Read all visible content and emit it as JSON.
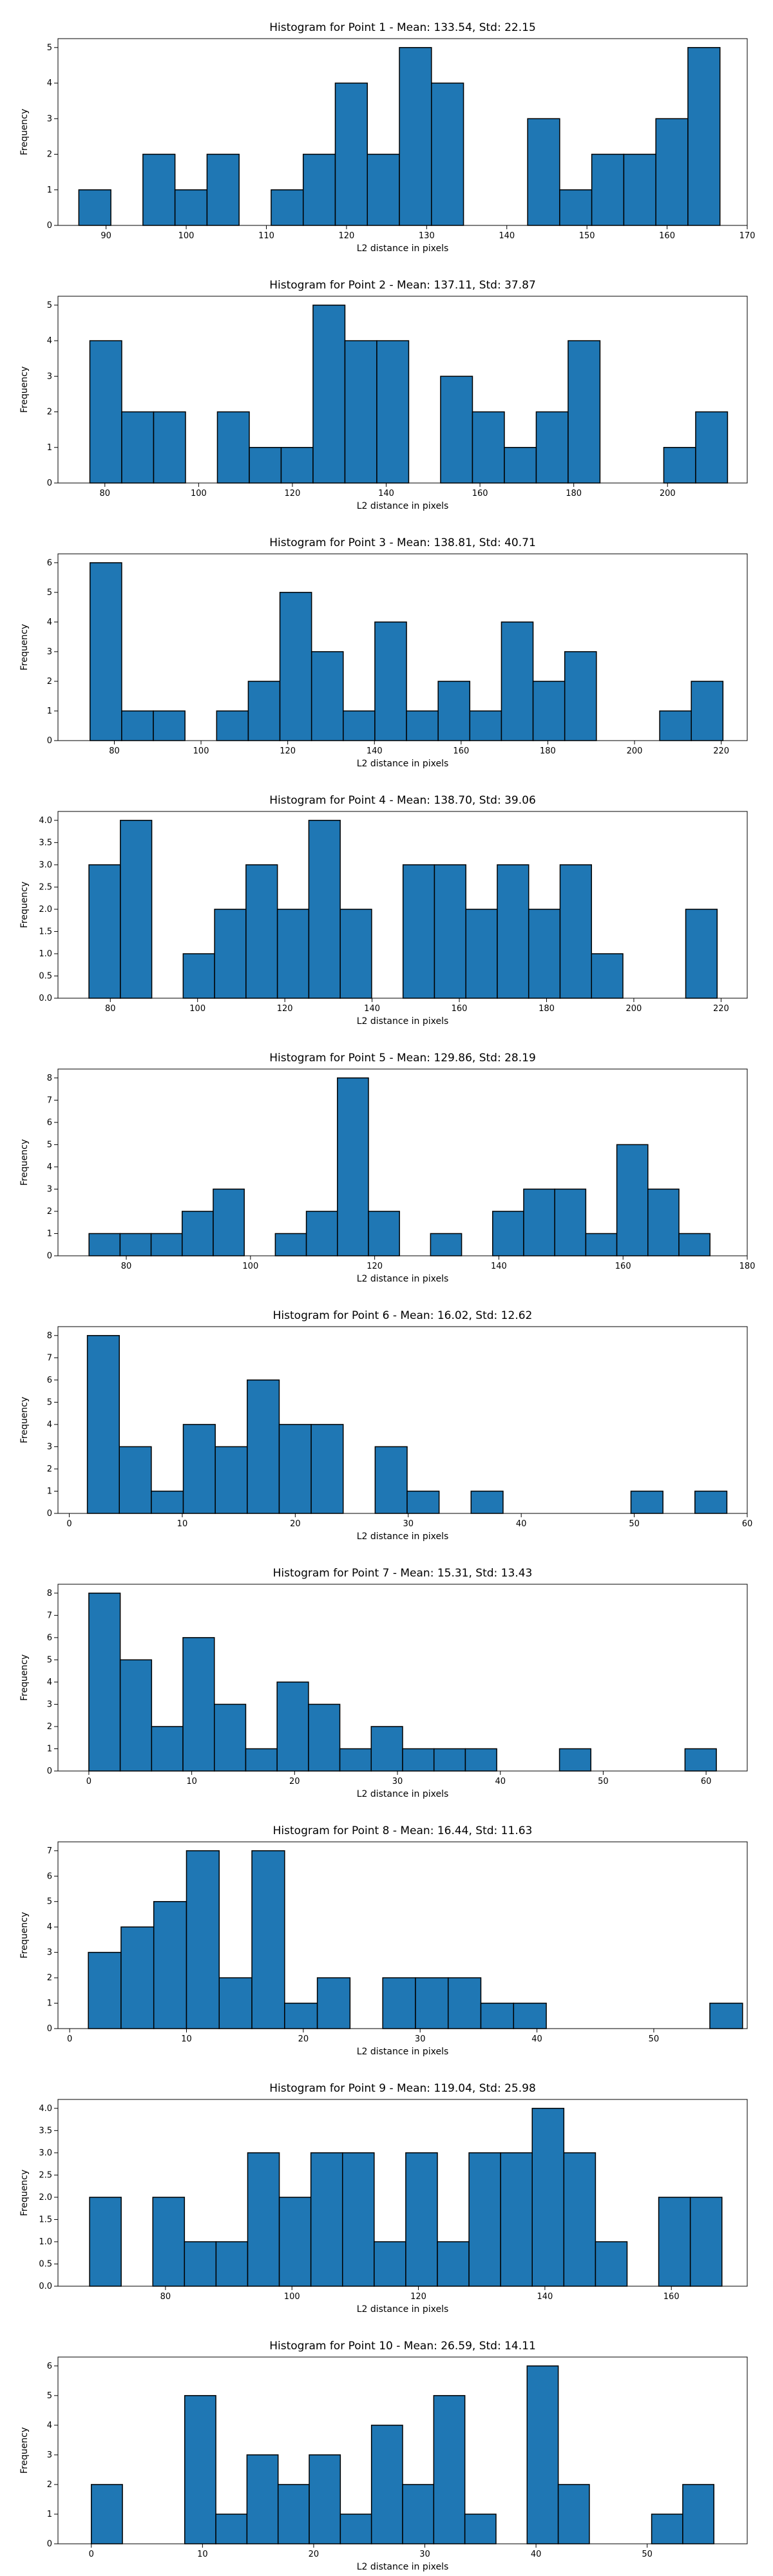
{
  "chart_data": [
    {
      "type": "bar",
      "title": "Histogram for Point 1 - Mean: 133.54, Std: 22.15",
      "xlabel": "L2 distance in pixels",
      "ylabel": "Frequency",
      "xlim": [
        84,
        170
      ],
      "ylim": [
        0,
        5.25
      ],
      "xticks": [
        90,
        100,
        110,
        120,
        130,
        140,
        150,
        160,
        170
      ],
      "yticks": [
        0,
        1,
        2,
        3,
        4,
        5
      ],
      "bins": [
        86.6,
        90.6,
        94.6,
        98.6,
        102.6,
        106.6,
        110.6,
        114.6,
        118.6,
        122.6,
        126.6,
        130.6,
        134.6,
        138.6,
        142.6,
        146.6,
        150.6,
        154.6,
        158.6,
        162.6,
        166.6
      ],
      "counts": [
        1,
        0,
        2,
        1,
        2,
        0,
        1,
        2,
        4,
        2,
        5,
        4,
        0,
        0,
        3,
        1,
        2,
        2,
        3,
        5
      ],
      "grid": false
    },
    {
      "type": "bar",
      "title": "Histogram for Point 2 - Mean: 137.11, Std: 37.87",
      "xlabel": "L2 distance in pixels",
      "ylabel": "Frequency",
      "xlim": [
        70,
        217
      ],
      "ylim": [
        0,
        5.25
      ],
      "xticks": [
        80,
        100,
        120,
        140,
        160,
        180,
        200
      ],
      "yticks": [
        0,
        1,
        2,
        3,
        4,
        5
      ],
      "bins": [
        76.8,
        83.6,
        90.4,
        97.2,
        104.0,
        110.8,
        117.6,
        124.4,
        131.2,
        138.0,
        144.8,
        151.6,
        158.4,
        165.2,
        172.0,
        178.8,
        185.6,
        192.4,
        199.2,
        206.0,
        212.8
      ],
      "counts": [
        4,
        2,
        2,
        0,
        2,
        1,
        1,
        5,
        4,
        4,
        0,
        3,
        2,
        1,
        2,
        4,
        0,
        0,
        1,
        2
      ],
      "grid": false
    },
    {
      "type": "bar",
      "title": "Histogram for Point 3 - Mean: 138.81, Std: 40.71",
      "xlabel": "L2 distance in pixels",
      "ylabel": "Frequency",
      "xlim": [
        67,
        226
      ],
      "ylim": [
        0,
        6.3
      ],
      "xticks": [
        80,
        100,
        120,
        140,
        160,
        180,
        200,
        220
      ],
      "yticks": [
        0,
        1,
        2,
        3,
        4,
        5,
        6
      ],
      "bins": [
        74.4,
        81.7,
        89.0,
        96.3,
        103.6,
        110.9,
        118.2,
        125.5,
        132.8,
        140.1,
        147.4,
        154.7,
        162.0,
        169.3,
        176.6,
        183.9,
        191.2,
        198.5,
        205.8,
        213.1,
        220.4
      ],
      "counts": [
        6,
        1,
        1,
        0,
        1,
        2,
        5,
        3,
        1,
        4,
        1,
        2,
        1,
        4,
        2,
        3,
        0,
        0,
        1,
        2
      ],
      "grid": false
    },
    {
      "type": "bar",
      "title": "Histogram for Point 4 - Mean: 138.70, Std: 39.06",
      "xlabel": "L2 distance in pixels",
      "ylabel": "Frequency",
      "xlim": [
        68,
        226
      ],
      "ylim": [
        0,
        4.2
      ],
      "xticks": [
        80,
        100,
        120,
        140,
        160,
        180,
        200,
        220
      ],
      "yticks": [
        0,
        0.5,
        1.0,
        1.5,
        2.0,
        2.5,
        3.0,
        3.5,
        4.0
      ],
      "ytick_labels": [
        "0.0",
        "0.5",
        "1.0",
        "1.5",
        "2.0",
        "2.5",
        "3.0",
        "3.5",
        "4.0"
      ],
      "bins": [
        75.1,
        82.3,
        89.5,
        96.7,
        103.9,
        111.1,
        118.3,
        125.5,
        132.7,
        139.9,
        147.1,
        154.3,
        161.5,
        168.7,
        175.9,
        183.1,
        190.3,
        197.5,
        204.7,
        211.9,
        219.1
      ],
      "counts": [
        3,
        4,
        0,
        1,
        2,
        3,
        2,
        4,
        2,
        0,
        3,
        3,
        2,
        3,
        2,
        3,
        1,
        0,
        0,
        2
      ],
      "grid": false
    },
    {
      "type": "bar",
      "title": "Histogram for Point 5 - Mean: 129.86, Std: 28.19",
      "xlabel": "L2 distance in pixels",
      "ylabel": "Frequency",
      "xlim": [
        69,
        180
      ],
      "ylim": [
        0,
        8.4
      ],
      "xticks": [
        80,
        100,
        120,
        140,
        160,
        180
      ],
      "yticks": [
        0,
        1,
        2,
        3,
        4,
        5,
        6,
        7,
        8
      ],
      "bins": [
        74.0,
        79.0,
        84.0,
        89.0,
        94.0,
        99.0,
        104.0,
        109.0,
        114.0,
        119.0,
        124.0,
        129.0,
        134.0,
        139.0,
        144.0,
        149.0,
        154.0,
        159.0,
        164.0,
        169.0,
        174.0
      ],
      "counts": [
        1,
        1,
        1,
        2,
        3,
        0,
        1,
        2,
        8,
        2,
        0,
        1,
        0,
        2,
        3,
        3,
        1,
        5,
        3,
        1
      ],
      "grid": false
    },
    {
      "type": "bar",
      "title": "Histogram for Point 6 - Mean: 16.02, Std: 12.62",
      "xlabel": "L2 distance in pixels",
      "ylabel": "Frequency",
      "xlim": [
        -1,
        60
      ],
      "ylim": [
        0,
        8.4
      ],
      "xticks": [
        0,
        10,
        20,
        30,
        40,
        50,
        60
      ],
      "yticks": [
        0,
        1,
        2,
        3,
        4,
        5,
        6,
        7,
        8
      ],
      "bins": [
        1.6,
        4.43,
        7.26,
        10.09,
        12.92,
        15.75,
        18.58,
        21.41,
        24.24,
        27.07,
        29.9,
        32.73,
        35.56,
        38.39,
        41.22,
        44.05,
        46.88,
        49.71,
        52.54,
        55.37,
        58.2
      ],
      "counts": [
        8,
        3,
        1,
        4,
        3,
        6,
        4,
        4,
        0,
        3,
        1,
        0,
        1,
        0,
        0,
        0,
        0,
        1,
        0,
        1
      ],
      "grid": false
    },
    {
      "type": "bar",
      "title": "Histogram for Point 7 - Mean: 15.31, Std: 13.43",
      "xlabel": "L2 distance in pixels",
      "ylabel": "Frequency",
      "xlim": [
        -3,
        64
      ],
      "ylim": [
        0,
        8.4
      ],
      "xticks": [
        0,
        10,
        20,
        30,
        40,
        50,
        60
      ],
      "yticks": [
        0,
        1,
        2,
        3,
        4,
        5,
        6,
        7,
        8
      ],
      "bins": [
        0.0,
        3.05,
        6.1,
        9.15,
        12.2,
        15.25,
        18.3,
        21.35,
        24.4,
        27.45,
        30.5,
        33.55,
        36.6,
        39.65,
        42.7,
        45.75,
        48.8,
        51.85,
        54.9,
        57.95,
        61.0
      ],
      "counts": [
        8,
        5,
        2,
        6,
        3,
        1,
        4,
        3,
        1,
        2,
        1,
        1,
        1,
        0,
        0,
        1,
        0,
        0,
        0,
        1
      ],
      "grid": false
    },
    {
      "type": "bar",
      "title": "Histogram for Point 8 - Mean: 16.44, Std: 11.63",
      "xlabel": "L2 distance in pixels",
      "ylabel": "Frequency",
      "xlim": [
        -1,
        58
      ],
      "ylim": [
        0,
        7.35
      ],
      "xticks": [
        0,
        10,
        20,
        30,
        40,
        50
      ],
      "yticks": [
        0,
        1,
        2,
        3,
        4,
        5,
        6,
        7
      ],
      "bins": [
        1.6,
        4.4,
        7.2,
        10.0,
        12.8,
        15.6,
        18.4,
        21.2,
        24.0,
        26.8,
        29.6,
        32.4,
        35.2,
        38.0,
        40.8,
        43.6,
        46.4,
        49.2,
        52.0,
        54.8,
        57.6
      ],
      "counts": [
        3,
        4,
        5,
        7,
        2,
        7,
        1,
        2,
        0,
        2,
        2,
        2,
        1,
        1,
        0,
        0,
        0,
        0,
        0,
        1
      ],
      "grid": false
    },
    {
      "type": "bar",
      "title": "Histogram for Point 9 - Mean: 119.04, Std: 25.98",
      "xlabel": "L2 distance in pixels",
      "ylabel": "Frequency",
      "xlim": [
        63,
        172
      ],
      "ylim": [
        0,
        4.2
      ],
      "xticks": [
        80,
        100,
        120,
        140,
        160
      ],
      "yticks": [
        0,
        0.5,
        1.0,
        1.5,
        2.0,
        2.5,
        3.0,
        3.5,
        4.0
      ],
      "ytick_labels": [
        "0.0",
        "0.5",
        "1.0",
        "1.5",
        "2.0",
        "2.5",
        "3.0",
        "3.5",
        "4.0"
      ],
      "bins": [
        68.0,
        73.0,
        78.0,
        83.0,
        88.0,
        93.0,
        98.0,
        103.0,
        108.0,
        113.0,
        118.0,
        123.0,
        128.0,
        133.0,
        138.0,
        143.0,
        148.0,
        153.0,
        158.0,
        163.0,
        168.0
      ],
      "counts": [
        2,
        0,
        2,
        1,
        1,
        3,
        2,
        3,
        3,
        1,
        3,
        1,
        3,
        3,
        4,
        3,
        1,
        0,
        2,
        2
      ],
      "grid": false
    },
    {
      "type": "bar",
      "title": "Histogram for Point 10 - Mean: 26.59, Std: 14.11",
      "xlabel": "L2 distance in pixels",
      "ylabel": "Frequency",
      "xlim": [
        -3,
        59
      ],
      "ylim": [
        0,
        6.3
      ],
      "xticks": [
        0,
        10,
        20,
        30,
        40,
        50
      ],
      "yticks": [
        0,
        1,
        2,
        3,
        4,
        5,
        6
      ],
      "bins": [
        0.0,
        2.8,
        5.6,
        8.4,
        11.2,
        14.0,
        16.8,
        19.6,
        22.4,
        25.2,
        28.0,
        30.8,
        33.6,
        36.4,
        39.2,
        42.0,
        44.8,
        47.6,
        50.4,
        53.2,
        56.0
      ],
      "counts": [
        2,
        0,
        0,
        5,
        1,
        3,
        2,
        3,
        1,
        4,
        2,
        5,
        1,
        0,
        6,
        2,
        0,
        0,
        1,
        2
      ],
      "grid": false
    }
  ],
  "colors": {
    "bar_fill": "#1f77b4",
    "bar_edge": "#000000"
  }
}
